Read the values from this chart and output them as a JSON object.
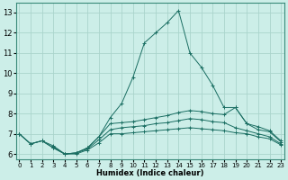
{
  "title": "",
  "xlabel": "Humidex (Indice chaleur)",
  "ylabel": "",
  "bg_color": "#cceee8",
  "grid_color": "#aad4cc",
  "line_color": "#1a6e62",
  "marker": "+",
  "x": [
    0,
    1,
    2,
    3,
    4,
    5,
    6,
    7,
    8,
    9,
    10,
    11,
    12,
    13,
    14,
    15,
    16,
    17,
    18,
    19,
    20,
    21,
    22,
    23
  ],
  "line1": [
    7.0,
    6.5,
    6.65,
    6.4,
    6.0,
    6.05,
    6.3,
    6.85,
    7.8,
    8.5,
    9.8,
    11.5,
    12.0,
    12.5,
    13.1,
    11.0,
    10.3,
    9.4,
    8.3,
    8.3,
    7.5,
    7.2,
    7.1,
    6.6
  ],
  "line2": [
    7.0,
    6.5,
    6.65,
    6.3,
    6.0,
    6.05,
    6.3,
    6.85,
    7.5,
    7.55,
    7.6,
    7.7,
    7.8,
    7.9,
    8.05,
    8.15,
    8.1,
    8.0,
    7.95,
    8.3,
    7.5,
    7.35,
    7.15,
    6.65
  ],
  "line3": [
    7.0,
    6.5,
    6.65,
    6.3,
    6.0,
    6.05,
    6.25,
    6.7,
    7.2,
    7.3,
    7.35,
    7.4,
    7.5,
    7.55,
    7.65,
    7.75,
    7.7,
    7.6,
    7.55,
    7.3,
    7.15,
    7.0,
    6.85,
    6.5
  ],
  "line4": [
    7.0,
    null,
    null,
    6.35,
    6.0,
    6.0,
    6.2,
    6.55,
    7.0,
    7.0,
    7.05,
    7.1,
    7.15,
    7.2,
    7.25,
    7.3,
    7.25,
    7.2,
    7.15,
    7.05,
    7.0,
    6.85,
    6.75,
    6.45
  ],
  "ylim": [
    5.75,
    13.5
  ],
  "xlim": [
    -0.3,
    23.3
  ],
  "yticks": [
    6,
    7,
    8,
    9,
    10,
    11,
    12,
    13
  ],
  "xticks": [
    0,
    1,
    2,
    3,
    4,
    5,
    6,
    7,
    8,
    9,
    10,
    11,
    12,
    13,
    14,
    15,
    16,
    17,
    18,
    19,
    20,
    21,
    22,
    23
  ]
}
